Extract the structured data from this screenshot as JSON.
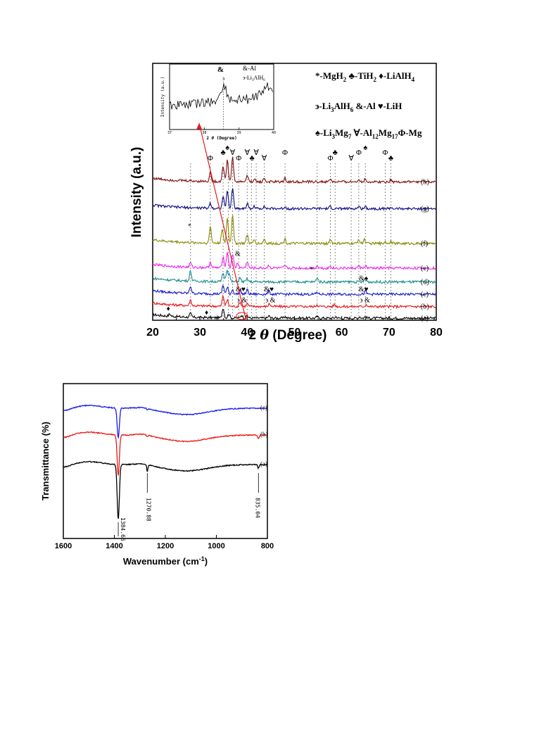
{
  "chart_data": [
    {
      "type": "line",
      "title": "",
      "xlabel_prefix": "2",
      "xlabel_theta": "θ",
      "xlabel_suffix": " (Degree)",
      "ylabel": "Intensity (a.u.)",
      "xlim": [
        20,
        80
      ],
      "x_ticks": [
        20,
        30,
        40,
        50,
        60,
        70,
        80
      ],
      "grid": false,
      "colors": [
        "#000000",
        "#e8141a",
        "#1a1acc",
        "#1a8c8c",
        "#ee22ee",
        "#888800",
        "#0a0a80",
        "#800a0a"
      ],
      "series": [
        {
          "name": "(a)",
          "baseline": 0.0,
          "peaks": [
            [
              23.6,
              0.3
            ],
            [
              28.0,
              0.5
            ],
            [
              34.9,
              1.4
            ],
            [
              36.1,
              0.6
            ],
            [
              38.8,
              0.4
            ],
            [
              40.0,
              0.3
            ],
            [
              44.6,
              0.3
            ],
            [
              48.0,
              0.2
            ],
            [
              54.8,
              0.2
            ],
            [
              58.8,
              0.2
            ],
            [
              63.8,
              0.2
            ],
            [
              65.0,
              0.2
            ]
          ]
        },
        {
          "name": "(b)",
          "baseline": 1.6,
          "peaks": [
            [
              28.0,
              0.8
            ],
            [
              34.9,
              1.4
            ],
            [
              35.8,
              0.9
            ],
            [
              38.5,
              0.6
            ],
            [
              40.0,
              0.4
            ],
            [
              44.7,
              0.4
            ],
            [
              54.8,
              0.3
            ],
            [
              58.5,
              0.3
            ],
            [
              65.2,
              0.3
            ]
          ]
        },
        {
          "name": "(c)",
          "baseline": 3.3,
          "peaks": [
            [
              28.0,
              1.0
            ],
            [
              34.9,
              1.2
            ],
            [
              35.8,
              0.9
            ],
            [
              36.9,
              0.6
            ],
            [
              38.5,
              0.6
            ],
            [
              40.0,
              0.6
            ],
            [
              44.6,
              0.4
            ],
            [
              54.8,
              0.3
            ],
            [
              65.0,
              0.4
            ]
          ]
        },
        {
          "name": "(d)",
          "baseline": 5.0,
          "peaks": [
            [
              28.0,
              1.4
            ],
            [
              34.9,
              1.2
            ],
            [
              35.7,
              1.6
            ],
            [
              36.2,
              1.0
            ],
            [
              38.5,
              0.5
            ],
            [
              40.0,
              0.4
            ],
            [
              54.8,
              0.6
            ],
            [
              65.0,
              0.5
            ]
          ]
        },
        {
          "name": "(e)",
          "baseline": 6.9,
          "peaks": [
            [
              28.0,
              0.6
            ],
            [
              32.2,
              0.8
            ],
            [
              34.9,
              1.6
            ],
            [
              35.8,
              2.2
            ],
            [
              36.9,
              2.0
            ],
            [
              38.0,
              0.7
            ],
            [
              40.0,
              0.9
            ],
            [
              44.6,
              0.4
            ],
            [
              48.0,
              0.3
            ],
            [
              54.8,
              0.3
            ],
            [
              57.6,
              0.3
            ],
            [
              63.6,
              0.3
            ],
            [
              65.0,
              0.3
            ]
          ]
        },
        {
          "name": "(f)",
          "baseline": 10.3,
          "peaks": [
            [
              32.2,
              2.3
            ],
            [
              34.7,
              2.0
            ],
            [
              35.8,
              3.5
            ],
            [
              36.9,
              4.0
            ],
            [
              40.0,
              1.2
            ],
            [
              41.5,
              0.5
            ],
            [
              43.6,
              0.6
            ],
            [
              48.0,
              0.6
            ],
            [
              57.6,
              0.6
            ],
            [
              63.6,
              0.6
            ],
            [
              64.8,
              0.6
            ],
            [
              69.2,
              0.3
            ],
            [
              70.4,
              0.4
            ]
          ]
        },
        {
          "name": "(g)",
          "baseline": 15.1,
          "peaks": [
            [
              32.2,
              0.7
            ],
            [
              34.9,
              1.6
            ],
            [
              35.8,
              2.4
            ],
            [
              36.9,
              2.8
            ],
            [
              40.0,
              0.7
            ],
            [
              41.5,
              0.3
            ],
            [
              43.6,
              0.4
            ],
            [
              48.0,
              0.3
            ],
            [
              57.6,
              0.3
            ],
            [
              63.6,
              0.3
            ],
            [
              65.0,
              0.3
            ],
            [
              70.4,
              0.2
            ]
          ]
        },
        {
          "name": "(h)",
          "baseline": 18.8,
          "peaks": [
            [
              32.2,
              1.2
            ],
            [
              34.9,
              2.2
            ],
            [
              35.8,
              3.0
            ],
            [
              36.9,
              3.4
            ],
            [
              40.0,
              0.9
            ],
            [
              41.5,
              0.4
            ],
            [
              43.6,
              0.5
            ],
            [
              48.0,
              0.5
            ],
            [
              57.6,
              0.4
            ],
            [
              63.6,
              0.4
            ],
            [
              65.0,
              0.4
            ],
            [
              70.4,
              0.3
            ]
          ]
        }
      ],
      "legend_lines": [
        [
          "*-MgH",
          "2",
          " ♣-TiH",
          "2",
          " ♦-LiAlH",
          "4"
        ],
        [
          "϶-Li",
          "3",
          "AlH",
          "6",
          " &-Al   ♥-LiH"
        ],
        [
          "♠-Li",
          "3",
          "Mg",
          "7",
          " ∀-Al",
          "12",
          "Mg",
          "17",
          "Φ-Mg"
        ]
      ],
      "dotted_x": [
        28.0,
        32.2,
        34.9,
        36.0,
        36.9,
        38.2,
        40.0,
        40.9,
        41.9,
        43.6,
        48.0,
        54.8,
        57.6,
        58.6,
        62.0,
        63.6,
        65.0,
        69.2,
        70.4
      ],
      "annotations_top": [
        {
          "x": 32.2,
          "text": "Φ"
        },
        {
          "x": 34.9,
          "text": "♣"
        },
        {
          "x": 35.8,
          "text": "♠"
        },
        {
          "x": 36.9,
          "text": "∀"
        },
        {
          "x": 38.2,
          "text": "Φ"
        },
        {
          "x": 40.0,
          "text": "∀"
        },
        {
          "x": 41.0,
          "text": "♣"
        },
        {
          "x": 41.9,
          "text": "∀"
        },
        {
          "x": 43.6,
          "text": "∀"
        },
        {
          "x": 48.0,
          "text": "Φ"
        },
        {
          "x": 57.6,
          "text": "Φ"
        },
        {
          "x": 58.6,
          "text": "♣"
        },
        {
          "x": 62.0,
          "text": "∀"
        },
        {
          "x": 63.6,
          "text": "Φ"
        },
        {
          "x": 65.0,
          "text": "♠"
        },
        {
          "x": 69.2,
          "text": "Φ"
        },
        {
          "x": 70.4,
          "text": "♣"
        }
      ],
      "annotations_mid": [
        {
          "x": 27.8,
          "level": 12.4,
          "text": "*"
        },
        {
          "x": 38.0,
          "level": 8.6,
          "text": "&"
        },
        {
          "x": 53.6,
          "level": 6.4,
          "text": "*"
        },
        {
          "x": 64.6,
          "level": 5.2,
          "text": "&♠"
        },
        {
          "x": 38.6,
          "level": 3.7,
          "text": "&♥"
        },
        {
          "x": 44.6,
          "level": 3.7,
          "text": "&♥"
        },
        {
          "x": 64.6,
          "level": 3.7,
          "text": "&♥"
        },
        {
          "x": 38.9,
          "level": 2.2,
          "text": "϶ &"
        },
        {
          "x": 44.9,
          "level": 2.2,
          "text": "϶ &"
        },
        {
          "x": 64.9,
          "level": 2.2,
          "text": "϶ &"
        },
        {
          "x": 23.3,
          "level": 1.0,
          "text": "♦"
        },
        {
          "x": 31.4,
          "level": 0.5,
          "text": "♦"
        }
      ],
      "inset": {
        "xlim": [
          37,
          40
        ],
        "x_ticks": [
          37,
          38,
          39,
          40
        ],
        "xlabel_prefix": "2",
        "xlabel_theta": "θ",
        "xlabel_suffix": " (Degree)",
        "ylabel": "Intensity (a.u.)",
        "label1": "&",
        "label2": "&-Al",
        "label3": "϶",
        "label4_prefix": "϶-Li",
        "label4_sub1": "3",
        "label4_mid": "AlH",
        "label4_sub2": "6",
        "marker_x": 38.55
      }
    },
    {
      "type": "line",
      "title": "",
      "xlabel": "Wavenumber (cm",
      "xlabel_sup": "-1",
      "xlabel_end": ")",
      "ylabel": "Transmittance (%)",
      "xlim": [
        1600,
        800
      ],
      "x_ticks": [
        1600,
        1400,
        1200,
        1000,
        800
      ],
      "grid": false,
      "series": [
        {
          "name": "(c)",
          "color": "#1a1aee",
          "offset": 0
        },
        {
          "name": "(b)",
          "color": "#ee1a1a",
          "offset": 38
        },
        {
          "name": "(a)",
          "color": "#000000",
          "offset": 80
        }
      ],
      "peak_labels": [
        {
          "x": 1384.66,
          "text": "1384.66"
        },
        {
          "x": 1270.88,
          "text": "1270.88"
        },
        {
          "x": 835.04,
          "text": "835.04"
        }
      ]
    }
  ]
}
